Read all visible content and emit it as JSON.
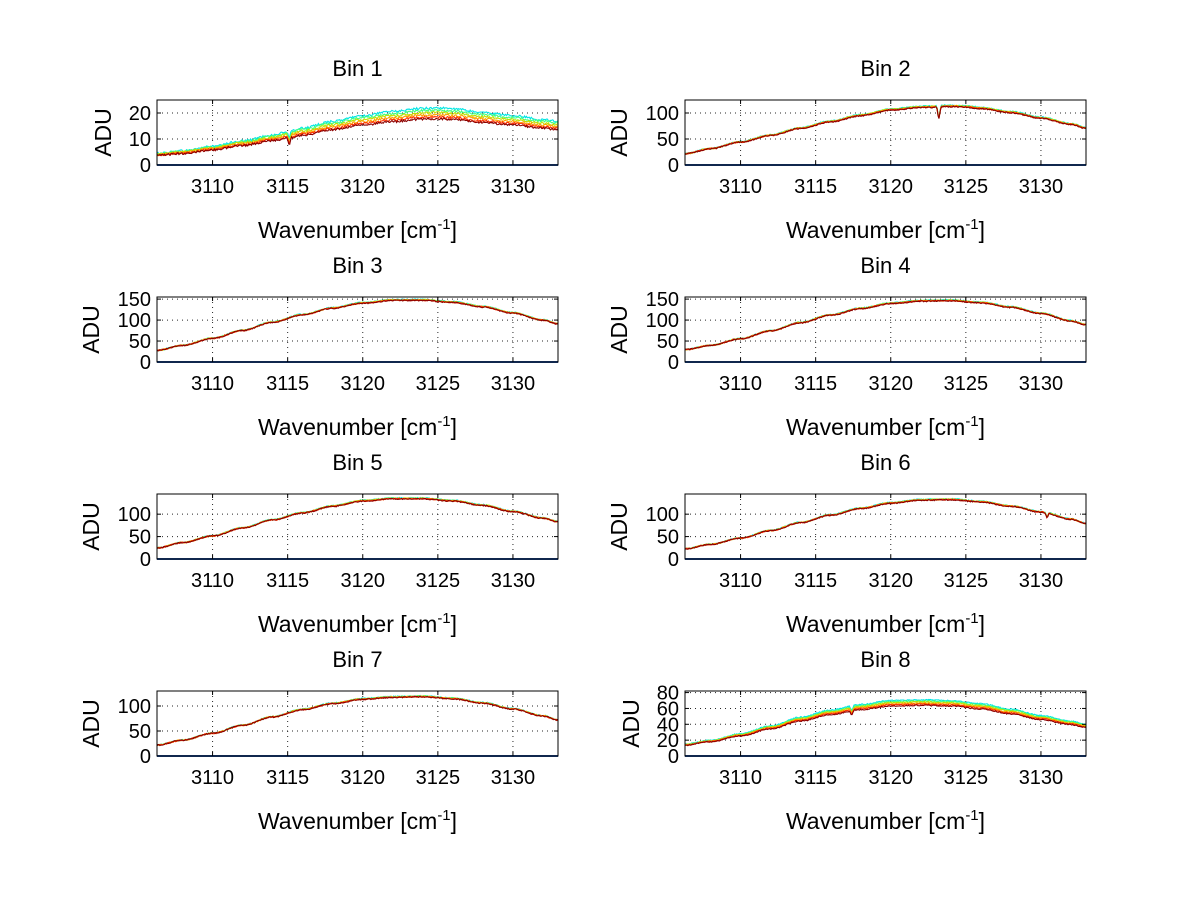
{
  "figure": {
    "background": "#ffffff"
  },
  "chart_data": [
    {
      "type": "line",
      "title": "Bin 1",
      "xlabel_base": "Wavenumber [cm",
      "xlabel_sup": "-1",
      "xlabel_close": "]",
      "ylabel": "ADU",
      "xlim": [
        3106.3,
        3133.0
      ],
      "ylim": [
        0,
        25
      ],
      "xticks": [
        3110,
        3115,
        3120,
        3125,
        3130
      ],
      "yticks": [
        0,
        10,
        20
      ],
      "series_colors": [
        "#00e5e5",
        "#40ff80",
        "#c0e000",
        "#ffa000",
        "#ff3000",
        "#8b0000"
      ],
      "spread": [
        0,
        0.04,
        0.08,
        0.12,
        0.16,
        0.19
      ],
      "x": [
        3106.3,
        3108,
        3110,
        3112,
        3114,
        3115,
        3116,
        3118,
        3120,
        3122,
        3124,
        3125,
        3126,
        3128,
        3130,
        3132,
        3133
      ],
      "y": [
        4.5,
        5.5,
        7.2,
        9.3,
        11.5,
        12.8,
        14.2,
        16.8,
        19.0,
        20.6,
        21.8,
        22.0,
        21.6,
        20.2,
        19.0,
        17.5,
        16.8
      ],
      "dips": [
        {
          "x": 3115.1,
          "depth": 2.5
        }
      ],
      "noise": 0.4,
      "baseline": 0
    },
    {
      "type": "line",
      "title": "Bin 2",
      "xlabel_base": "Wavenumber [cm",
      "xlabel_sup": "-1",
      "xlabel_close": "]",
      "ylabel": "ADU",
      "xlim": [
        3106.3,
        3133.0
      ],
      "ylim": [
        0,
        125
      ],
      "xticks": [
        3110,
        3115,
        3120,
        3125,
        3130
      ],
      "yticks": [
        0,
        50,
        100
      ],
      "series_colors": [
        "#00e5e5",
        "#40ff80",
        "#c0e000",
        "#ffa000",
        "#ff3000",
        "#8b0000"
      ],
      "spread": [
        0,
        0.005,
        0.01,
        0.015,
        0.02,
        0.025
      ],
      "x": [
        3106.3,
        3108,
        3110,
        3112,
        3114,
        3116,
        3118,
        3120,
        3122,
        3124,
        3125,
        3126,
        3128,
        3130,
        3132,
        3133
      ],
      "y": [
        22,
        32,
        45,
        58,
        72,
        85,
        97,
        108,
        113,
        115,
        114,
        111,
        103,
        92,
        80,
        72
      ],
      "dips": [
        {
          "x": 3123.2,
          "depth": 22
        }
      ],
      "noise": 1.2,
      "baseline": 0
    },
    {
      "type": "line",
      "title": "Bin 3",
      "xlabel_base": "Wavenumber [cm",
      "xlabel_sup": "-1",
      "xlabel_close": "]",
      "ylabel": "ADU",
      "xlim": [
        3106.3,
        3133.0
      ],
      "ylim": [
        0,
        155
      ],
      "xticks": [
        3110,
        3115,
        3120,
        3125,
        3130
      ],
      "yticks": [
        0,
        50,
        100,
        150
      ],
      "series_colors": [
        "#00e5e5",
        "#40ff80",
        "#c0e000",
        "#ffa000",
        "#ff3000",
        "#8b0000"
      ],
      "spread": [
        0,
        0.003,
        0.006,
        0.009,
        0.012,
        0.015
      ],
      "x": [
        3106.3,
        3108,
        3110,
        3112,
        3114,
        3116,
        3118,
        3120,
        3122,
        3124,
        3126,
        3128,
        3130,
        3132,
        3133
      ],
      "y": [
        28,
        40,
        57,
        76,
        96,
        114,
        130,
        142,
        149,
        149,
        144,
        133,
        118,
        101,
        92
      ],
      "dips": [],
      "noise": 1.4,
      "baseline": 0
    },
    {
      "type": "line",
      "title": "Bin 4",
      "xlabel_base": "Wavenumber [cm",
      "xlabel_sup": "-1",
      "xlabel_close": "]",
      "ylabel": "ADU",
      "xlim": [
        3106.3,
        3133.0
      ],
      "ylim": [
        0,
        155
      ],
      "xticks": [
        3110,
        3115,
        3120,
        3125,
        3130
      ],
      "yticks": [
        0,
        50,
        100,
        150
      ],
      "series_colors": [
        "#00e5e5",
        "#40ff80",
        "#c0e000",
        "#ffa000",
        "#ff3000",
        "#8b0000"
      ],
      "spread": [
        0,
        0.003,
        0.006,
        0.009,
        0.012,
        0.015
      ],
      "x": [
        3106.3,
        3108,
        3110,
        3112,
        3114,
        3116,
        3118,
        3120,
        3122,
        3124,
        3126,
        3128,
        3130,
        3132,
        3133
      ],
      "y": [
        30,
        40,
        56,
        75,
        95,
        113,
        129,
        141,
        147,
        148,
        143,
        132,
        117,
        99,
        90
      ],
      "dips": [],
      "noise": 1.4,
      "baseline": 0
    },
    {
      "type": "line",
      "title": "Bin 5",
      "xlabel_base": "Wavenumber [cm",
      "xlabel_sup": "-1",
      "xlabel_close": "]",
      "ylabel": "ADU",
      "xlim": [
        3106.3,
        3133.0
      ],
      "ylim": [
        0,
        145
      ],
      "xticks": [
        3110,
        3115,
        3120,
        3125,
        3130
      ],
      "yticks": [
        0,
        50,
        100
      ],
      "series_colors": [
        "#00e5e5",
        "#40ff80",
        "#c0e000",
        "#ffa000",
        "#ff3000",
        "#8b0000"
      ],
      "spread": [
        0,
        0.003,
        0.006,
        0.009,
        0.012,
        0.015
      ],
      "x": [
        3106.3,
        3108,
        3110,
        3112,
        3114,
        3116,
        3118,
        3120,
        3122,
        3124,
        3126,
        3128,
        3130,
        3132,
        3133
      ],
      "y": [
        25,
        37,
        52,
        70,
        88,
        104,
        119,
        131,
        136,
        136,
        131,
        121,
        107,
        92,
        84
      ],
      "dips": [],
      "noise": 1.3,
      "baseline": 0
    },
    {
      "type": "line",
      "title": "Bin 6",
      "xlabel_base": "Wavenumber [cm",
      "xlabel_sup": "-1",
      "xlabel_close": "]",
      "ylabel": "ADU",
      "xlim": [
        3106.3,
        3133.0
      ],
      "ylim": [
        0,
        145
      ],
      "xticks": [
        3110,
        3115,
        3120,
        3125,
        3130
      ],
      "yticks": [
        0,
        50,
        100
      ],
      "series_colors": [
        "#00e5e5",
        "#40ff80",
        "#c0e000",
        "#ffa000",
        "#ff3000",
        "#8b0000"
      ],
      "spread": [
        0,
        0.003,
        0.006,
        0.009,
        0.012,
        0.015
      ],
      "x": [
        3106.3,
        3108,
        3110,
        3112,
        3114,
        3116,
        3118,
        3120,
        3122,
        3124,
        3126,
        3128,
        3130,
        3132,
        3133
      ],
      "y": [
        23,
        33,
        47,
        64,
        82,
        99,
        114,
        126,
        133,
        134,
        129,
        119,
        106,
        90,
        80
      ],
      "dips": [
        {
          "x": 3130.4,
          "depth": 10
        }
      ],
      "noise": 1.3,
      "baseline": 0
    },
    {
      "type": "line",
      "title": "Bin 7",
      "xlabel_base": "Wavenumber [cm",
      "xlabel_sup": "-1",
      "xlabel_close": "]",
      "ylabel": "ADU",
      "xlim": [
        3106.3,
        3133.0
      ],
      "ylim": [
        0,
        130
      ],
      "xticks": [
        3110,
        3115,
        3120,
        3125,
        3130
      ],
      "yticks": [
        0,
        50,
        100
      ],
      "series_colors": [
        "#00e5e5",
        "#40ff80",
        "#c0e000",
        "#ffa000",
        "#ff3000",
        "#8b0000"
      ],
      "spread": [
        0,
        0.003,
        0.006,
        0.009,
        0.012,
        0.015
      ],
      "x": [
        3106.3,
        3108,
        3110,
        3112,
        3114,
        3116,
        3118,
        3120,
        3122,
        3124,
        3126,
        3128,
        3130,
        3132,
        3133
      ],
      "y": [
        22,
        32,
        46,
        62,
        79,
        94,
        106,
        115,
        119,
        120,
        116,
        107,
        95,
        81,
        73
      ],
      "dips": [],
      "noise": 1.2,
      "baseline": 0
    },
    {
      "type": "line",
      "title": "Bin 8",
      "xlabel_base": "Wavenumber [cm",
      "xlabel_sup": "-1",
      "xlabel_close": "]",
      "ylabel": "ADU",
      "xlim": [
        3106.3,
        3133.0
      ],
      "ylim": [
        0,
        82
      ],
      "xticks": [
        3110,
        3115,
        3120,
        3125,
        3130
      ],
      "yticks": [
        0,
        20,
        40,
        60,
        80
      ],
      "series_colors": [
        "#00e5e5",
        "#40ff80",
        "#c0e000",
        "#ffa000",
        "#ff3000",
        "#8b0000"
      ],
      "spread": [
        0,
        0.02,
        0.04,
        0.06,
        0.08,
        0.1
      ],
      "x": [
        3106.3,
        3108,
        3110,
        3112,
        3114,
        3116,
        3118,
        3120,
        3122,
        3124,
        3126,
        3128,
        3130,
        3132,
        3133
      ],
      "y": [
        15,
        20,
        28,
        38,
        49,
        58,
        65,
        70,
        71,
        70,
        66,
        59,
        51,
        44,
        40
      ],
      "dips": [
        {
          "x": 3117.4,
          "depth": 6
        }
      ],
      "noise": 0.7,
      "baseline": 0
    }
  ]
}
